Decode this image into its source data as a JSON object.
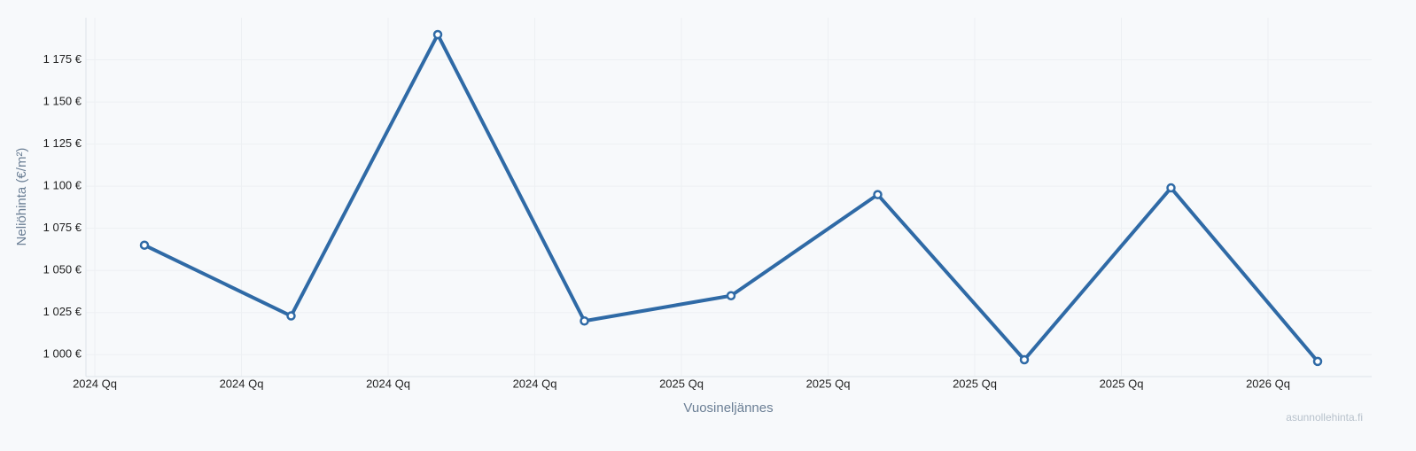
{
  "chart_data": {
    "type": "line",
    "x_label": "Vuosineljännes",
    "y_label": "Neliöhinta (€/m²)",
    "watermark": "asunnollehinta.fi",
    "categories": [
      "2024 Qq",
      "2024 Qq",
      "2024 Qq",
      "2024 Qq",
      "2025 Qq",
      "2025 Qq",
      "2025 Qq",
      "2025 Qq",
      "2026 Qq"
    ],
    "series": [
      {
        "name": "Neliöhinta",
        "color": "#2f6aa6",
        "values": [
          1065,
          1023,
          1190,
          1020,
          1035,
          1095,
          997,
          1099,
          996
        ]
      }
    ],
    "ylim": [
      987,
      1200
    ],
    "yticks": [
      {
        "value": 1000,
        "label": "1 000 €"
      },
      {
        "value": 1025,
        "label": "1 025 €"
      },
      {
        "value": 1050,
        "label": "1 050 €"
      },
      {
        "value": 1075,
        "label": "1 075 €"
      },
      {
        "value": 1100,
        "label": "1 100 €"
      },
      {
        "value": 1125,
        "label": "1 125 €"
      },
      {
        "value": 1150,
        "label": "1 150 €"
      },
      {
        "value": 1175,
        "label": "1 175 €"
      }
    ],
    "grid": true
  }
}
